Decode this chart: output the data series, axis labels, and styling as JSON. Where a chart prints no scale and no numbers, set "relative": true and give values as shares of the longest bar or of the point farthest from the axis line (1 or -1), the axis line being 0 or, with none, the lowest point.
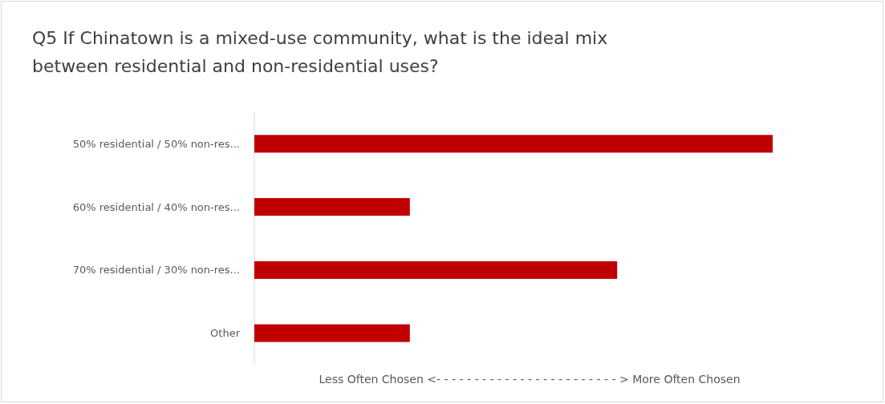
{
  "chart_data": {
    "type": "bar",
    "orientation": "horizontal",
    "relative": true,
    "title": "Q5 If Chinatown is a mixed-use community, what is the ideal mix between residential and non-residential uses?",
    "xlabel": "Less Often Chosen <- - - - - - - - - - - - - - - - - - - - - - - - > More Often Chosen",
    "categories": [
      "50% residential / 50% non-res...",
      "60% residential / 40% non-res...",
      "70% residential / 30% non-res...",
      "Other"
    ],
    "values": [
      1,
      0.3,
      0.7,
      0.3
    ],
    "color": "#c00000"
  }
}
